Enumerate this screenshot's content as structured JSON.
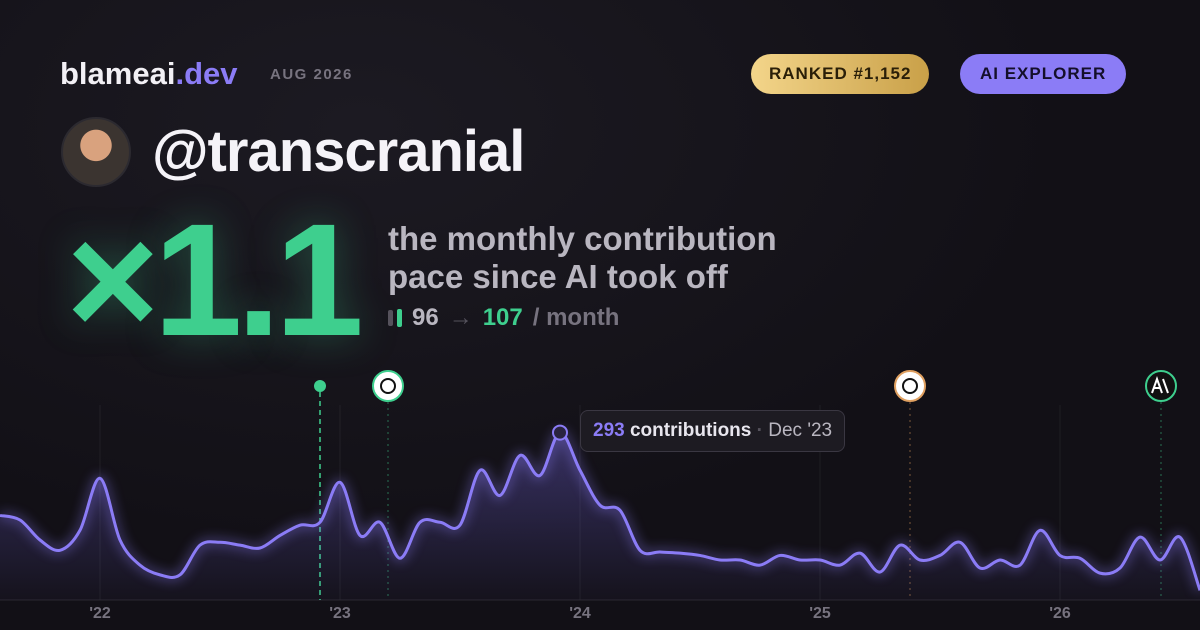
{
  "brand": {
    "name": "blameai",
    "tld": ".dev",
    "date": "AUG 2026"
  },
  "badges": {
    "rank": "RANKED #1,152",
    "tier": "AI EXPLORER"
  },
  "user": {
    "handle": "@transcranial"
  },
  "headline": {
    "multiplier": "×1.1",
    "line1": "the monthly contribution",
    "line2": "pace since AI took off",
    "before": "96",
    "arrow": "→",
    "after": "107",
    "unit": "/ month"
  },
  "chart_data": {
    "type": "line",
    "categories": [
      null,
      null,
      null,
      null,
      null,
      "'22",
      null,
      null,
      null,
      null,
      null,
      null,
      null,
      null,
      null,
      null,
      null,
      "'23",
      null,
      null,
      null,
      null,
      null,
      null,
      null,
      null,
      null,
      null,
      null,
      "'24",
      null,
      null,
      null,
      null,
      null,
      null,
      null,
      null,
      null,
      null,
      null,
      "'25",
      null,
      null,
      null,
      null,
      null,
      null,
      null,
      null,
      null,
      null,
      null,
      "'26",
      null,
      null,
      null,
      null,
      null,
      null,
      null
    ],
    "series": [
      {
        "name": "contributions",
        "color": "#8b7cf6",
        "values": [
          148,
          140,
          105,
          87,
          122,
          213,
          105,
          61,
          44,
          44,
          96,
          101,
          96,
          91,
          113,
          131,
          136,
          206,
          113,
          136,
          73,
          136,
          136,
          131,
          227,
          183,
          253,
          218,
          293,
          227,
          166,
          157,
          87,
          84,
          82,
          78,
          70,
          70,
          61,
          78,
          70,
          70,
          61,
          82,
          49,
          96,
          70,
          78,
          101,
          56,
          70,
          61,
          122,
          78,
          73,
          47,
          56,
          110,
          70,
          110,
          17
        ]
      }
    ],
    "ylim": [
      0,
      350
    ],
    "grid": true,
    "tooltip": {
      "date": "Dec '23"
    }
  }
}
